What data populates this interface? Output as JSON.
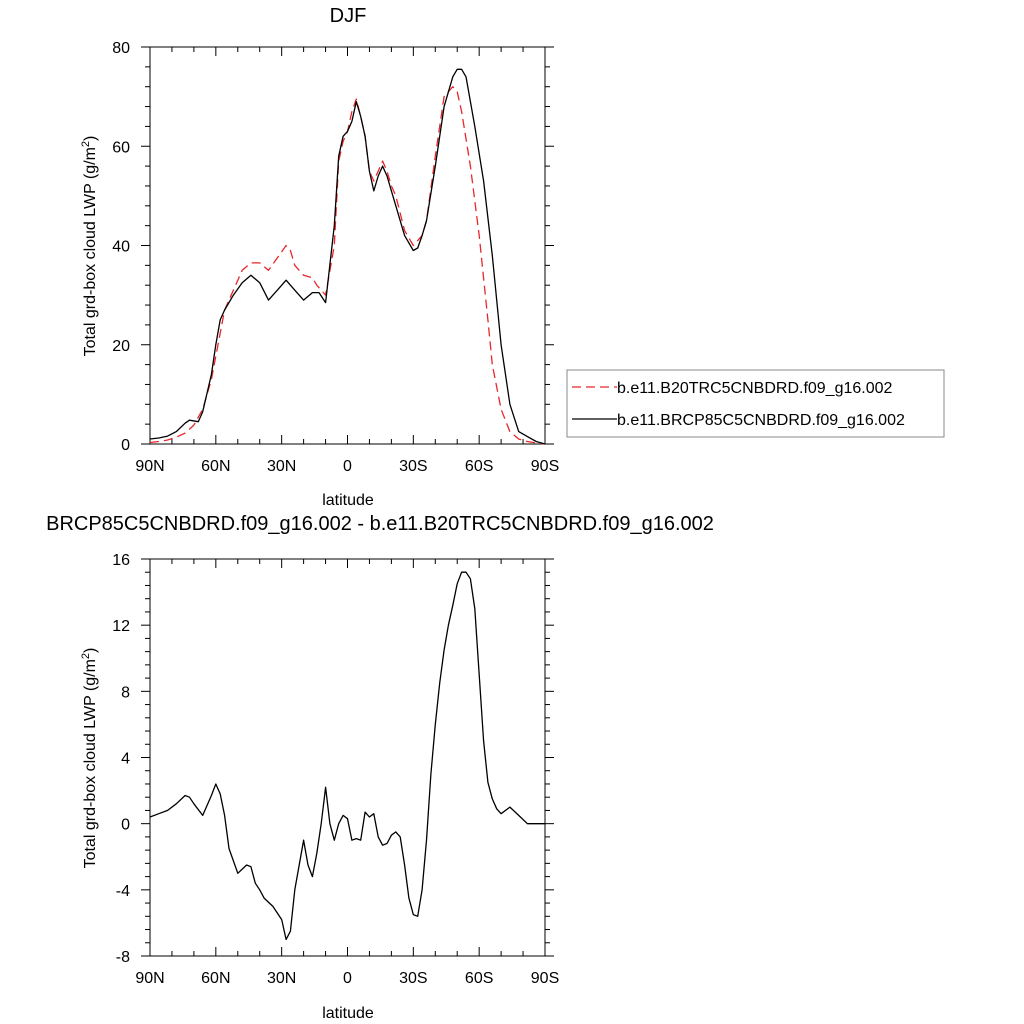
{
  "chart_data": [
    {
      "type": "line",
      "title": "DJF",
      "xlabel": "latitude",
      "ylabel": "Total grd-box cloud LWP (g/m",
      "ylabel_sup": "2",
      "ylabel_close": ")",
      "xlim": [
        90,
        -90
      ],
      "ylim": [
        0,
        80
      ],
      "x_ticks": [
        90,
        60,
        30,
        0,
        -30,
        -60,
        -90
      ],
      "x_tick_labels": [
        "90N",
        "60N",
        "30N",
        "0",
        "30S",
        "60S",
        "90S"
      ],
      "y_ticks": [
        0,
        20,
        40,
        60,
        80
      ],
      "y_tick_labels": [
        "0",
        "20",
        "40",
        "60",
        "80"
      ],
      "legend_position": "right",
      "series": [
        {
          "name": "b.e11.B20TRC5CNBDRD.f09_g16.002",
          "color": "#e8262b",
          "dash": "dashed",
          "x": [
            90,
            86,
            82,
            78,
            74,
            70,
            66,
            62,
            59,
            56,
            52,
            48,
            44,
            40,
            36,
            32,
            28,
            26,
            24,
            20,
            16,
            14,
            10,
            6,
            4,
            2,
            0,
            -2,
            -4,
            -6,
            -8,
            -10,
            -12,
            -14,
            -16,
            -18,
            -20,
            -22,
            -26,
            -30,
            -34,
            -36,
            -40,
            -44,
            -48,
            -50,
            -52,
            -56,
            -60,
            -64,
            -66,
            -70,
            -74,
            -78,
            -82,
            -86,
            -90
          ],
          "y": [
            0.3,
            0.5,
            0.8,
            1.4,
            2.2,
            3.8,
            7,
            13,
            20,
            27,
            31,
            35,
            36.5,
            36.5,
            35,
            37.5,
            40,
            39,
            36,
            34,
            33.5,
            32,
            30,
            40,
            57,
            61,
            63,
            67,
            69.5,
            66,
            62,
            55,
            53,
            55,
            57,
            55,
            52,
            50,
            43,
            40,
            42,
            45,
            58,
            70,
            72,
            71,
            67,
            56,
            42,
            25,
            16,
            7,
            2.5,
            1,
            0.5,
            0.2,
            0
          ]
        },
        {
          "name": "b.e11.BRCP85C5CNBDRD.f09_g16.002",
          "color": "#000000",
          "dash": "solid",
          "x": [
            90,
            86,
            82,
            78,
            74,
            72,
            68,
            66,
            62,
            60,
            58,
            56,
            52,
            48,
            44,
            40,
            36,
            32,
            28,
            24,
            20,
            16,
            13,
            10,
            6,
            4,
            2,
            0,
            -2,
            -4,
            -6,
            -8,
            -10,
            -12,
            -14,
            -16,
            -18,
            -20,
            -22,
            -26,
            -30,
            -32,
            -34,
            -36,
            -40,
            -44,
            -48,
            -50,
            -52,
            -54,
            -58,
            -62,
            -66,
            -70,
            -74,
            -78,
            -82,
            -86,
            -90
          ],
          "y": [
            1,
            1.2,
            1.6,
            2.5,
            4.2,
            4.8,
            4.5,
            6.5,
            14,
            20,
            25,
            27,
            30,
            32.5,
            34,
            32.5,
            29,
            31,
            33,
            31,
            29,
            30.5,
            30.5,
            28.5,
            44,
            58,
            62,
            63,
            65,
            69,
            66,
            62,
            55,
            51,
            54,
            56,
            54,
            51,
            48,
            42,
            39,
            39.5,
            42,
            45,
            56,
            68,
            74,
            75.5,
            75.5,
            74,
            64,
            53,
            38,
            20,
            8,
            2.5,
            1.5,
            0.5,
            0
          ]
        }
      ]
    },
    {
      "type": "line",
      "title": "BRCP85C5CNBDRD.f09_g16.002 - b.e11.B20TRC5CNBDRD.f09_g16.002",
      "xlabel": "latitude",
      "ylabel": "Total grd-box cloud LWP (g/m",
      "ylabel_sup": "2",
      "ylabel_close": ")",
      "xlim": [
        90,
        -90
      ],
      "ylim": [
        -8,
        16
      ],
      "x_ticks": [
        90,
        60,
        30,
        0,
        -30,
        -60,
        -90
      ],
      "x_tick_labels": [
        "90N",
        "60N",
        "30N",
        "0",
        "30S",
        "60S",
        "90S"
      ],
      "y_ticks": [
        -8,
        -4,
        0,
        4,
        8,
        12,
        16
      ],
      "y_tick_labels": [
        "-8",
        "-4",
        "0",
        "4",
        "8",
        "12",
        "16"
      ],
      "series": [
        {
          "color": "#000000",
          "dash": "solid",
          "x": [
            90,
            86,
            82,
            78,
            74,
            72,
            70,
            66,
            62,
            60,
            58,
            56,
            54,
            50,
            46,
            44,
            42,
            40,
            38,
            34,
            30,
            28,
            26,
            24,
            22,
            20,
            18,
            16,
            14,
            12,
            10,
            8,
            6,
            4,
            2,
            0,
            -2,
            -4,
            -6,
            -8,
            -10,
            -12,
            -14,
            -16,
            -18,
            -20,
            -22,
            -24,
            -26,
            -28,
            -30,
            -32,
            -34,
            -36,
            -38,
            -40,
            -42,
            -44,
            -46,
            -48,
            -50,
            -52,
            -54,
            -56,
            -58,
            -60,
            -62,
            -64,
            -66,
            -68,
            -70,
            -74,
            -78,
            -82,
            -86,
            -90
          ],
          "y": [
            0.4,
            0.6,
            0.8,
            1.2,
            1.7,
            1.6,
            1.2,
            0.5,
            1.7,
            2.4,
            1.8,
            0.5,
            -1.5,
            -3,
            -2.5,
            -2.6,
            -3.6,
            -4,
            -4.5,
            -5,
            -5.8,
            -7,
            -6.5,
            -4,
            -2.5,
            -1,
            -2.5,
            -3.2,
            -1.8,
            0,
            2.2,
            0,
            -1,
            0,
            0.5,
            0.3,
            -1,
            -0.9,
            -1,
            0.7,
            0.4,
            0.6,
            -0.8,
            -1.3,
            -1.2,
            -0.7,
            -0.5,
            -0.8,
            -2.5,
            -4.5,
            -5.5,
            -5.6,
            -4,
            -1,
            3,
            6,
            8.5,
            10.5,
            12,
            13.2,
            14.5,
            15.2,
            15.2,
            14.8,
            13,
            9,
            5,
            2.5,
            1.5,
            0.9,
            0.6,
            1,
            0.5,
            0,
            0,
            0
          ]
        }
      ]
    }
  ]
}
